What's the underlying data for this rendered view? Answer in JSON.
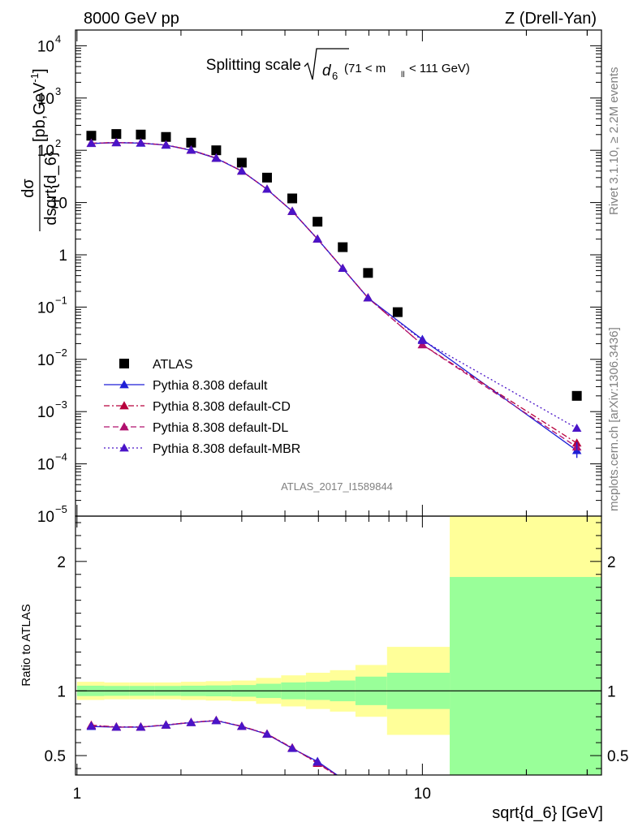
{
  "header": {
    "left": "8000 GeV pp",
    "right": "Z (Drell-Yan)"
  },
  "side_labels": {
    "rivet": "Rivet 3.1.10, ≥ 2.2M events",
    "mcplots": "mcplots.cern.ch [arXiv:1306.3436]"
  },
  "watermark": "ATLAS_2017_I1589844",
  "chart_data": [
    {
      "type": "scatter",
      "panel": "main",
      "title": "Splitting scale",
      "title_symbol": "d",
      "title_subscript": "6",
      "title_range_prefix": "(71 < m",
      "title_range_sub": "ll",
      "title_range_suffix": "< 111 GeV)",
      "ylabel_num": "dσ",
      "ylabel_den": "dsqrt{d_6}",
      "ylabel_units": "[pb,GeV",
      "ylabel_units_sup": "-1",
      "ylabel_units_end": "]",
      "xscale": "log",
      "yscale": "log",
      "xlim": [
        0.99,
        33
      ],
      "ylim": [
        1e-05,
        20000
      ],
      "xticks": [
        {
          "value": 1,
          "label": "1"
        },
        {
          "value": 10,
          "label": "10"
        }
      ],
      "yticks": [
        {
          "value": 1e-05,
          "base": "10",
          "exp": "−5"
        },
        {
          "value": 0.0001,
          "base": "10",
          "exp": "−4"
        },
        {
          "value": 0.001,
          "base": "10",
          "exp": "−3"
        },
        {
          "value": 0.01,
          "base": "10",
          "exp": "−2"
        },
        {
          "value": 0.1,
          "base": "10",
          "exp": "−1"
        },
        {
          "value": 1,
          "base": "1",
          "exp": ""
        },
        {
          "value": 10,
          "base": "10",
          "exp": ""
        },
        {
          "value": 100,
          "base": "10",
          "exp": "2"
        },
        {
          "value": 1000,
          "base": "10",
          "exp": "3"
        },
        {
          "value": 10000,
          "base": "10",
          "exp": "4"
        }
      ],
      "legend_position": "bottom-left",
      "series": [
        {
          "name": "ATLAS",
          "marker": "square",
          "color": "#000000",
          "x": [
            1.1,
            1.3,
            1.53,
            1.81,
            2.14,
            2.53,
            3.0,
            3.55,
            4.2,
            4.97,
            5.88,
            6.96,
            8.48,
            28.0
          ],
          "y": [
            190,
            205,
            200,
            180,
            140,
            100,
            58,
            30,
            12,
            4.3,
            1.4,
            0.45,
            0.08,
            0.002
          ]
        },
        {
          "name": "Pythia 8.308 default",
          "marker": "triangle",
          "line": "solid",
          "color": "#1f1fd6",
          "x": [
            1.1,
            1.3,
            1.53,
            1.81,
            2.14,
            2.53,
            3.0,
            3.55,
            4.2,
            4.97,
            5.88,
            6.96,
            10.0,
            28.0
          ],
          "y": [
            135,
            140,
            137,
            125,
            100,
            70,
            40,
            18,
            6.8,
            2.0,
            0.55,
            0.15,
            0.024,
            0.00018
          ]
        },
        {
          "name": "Pythia 8.308 default-CD",
          "marker": "triangle",
          "line": "dashdot",
          "color": "#b8003c",
          "x": [
            1.1,
            1.3,
            1.53,
            1.81,
            2.14,
            2.53,
            3.0,
            3.55,
            4.2,
            4.97,
            5.88,
            6.96,
            10.0,
            28.0
          ],
          "y": [
            137,
            141,
            138,
            126,
            101,
            71,
            40,
            18,
            6.8,
            2.0,
            0.55,
            0.15,
            0.019,
            0.00025
          ]
        },
        {
          "name": "Pythia 8.308 default-DL",
          "marker": "triangle",
          "line": "dashed",
          "color": "#b0106e",
          "x": [
            1.1,
            1.3,
            1.53,
            1.81,
            2.14,
            2.53,
            3.0,
            3.55,
            4.2,
            4.97,
            5.88,
            6.96,
            10.0,
            28.0
          ],
          "y": [
            136,
            140,
            138,
            126,
            101,
            71,
            40,
            18,
            6.8,
            2.0,
            0.55,
            0.15,
            0.019,
            0.00021
          ]
        },
        {
          "name": "Pythia 8.308 default-MBR",
          "marker": "triangle",
          "line": "dotted",
          "color": "#4a14c8",
          "x": [
            1.1,
            1.3,
            1.53,
            1.81,
            2.14,
            2.53,
            3.0,
            3.55,
            4.2,
            4.97,
            5.88,
            6.96,
            10.0,
            28.0
          ],
          "y": [
            136,
            140,
            138,
            126,
            101,
            71,
            40,
            18,
            6.8,
            2.0,
            0.55,
            0.15,
            0.023,
            0.00048
          ]
        }
      ]
    },
    {
      "type": "line",
      "panel": "ratio",
      "ylabel": "Ratio to ATLAS",
      "xlabel": "sqrt{d_6} [GeV]",
      "xscale": "log",
      "xlim": [
        0.99,
        33
      ],
      "ylim": [
        0.35,
        2.35
      ],
      "yticks": [
        {
          "value": 0.5,
          "label": "0.5"
        },
        {
          "value": 1,
          "label": "1"
        },
        {
          "value": 2,
          "label": "2"
        }
      ],
      "xticks": [
        {
          "value": 1,
          "label": "1"
        },
        {
          "value": 10,
          "label": "10"
        }
      ],
      "band_colors": {
        "outer": "#ffff99",
        "inner": "#99ff99"
      },
      "bands": [
        {
          "x0": 1.0,
          "x1": 1.2,
          "outer": [
            0.93,
            1.07
          ],
          "inner": [
            0.96,
            1.04
          ]
        },
        {
          "x0": 1.2,
          "x1": 1.42,
          "outer": [
            0.935,
            1.065
          ],
          "inner": [
            0.962,
            1.038
          ]
        },
        {
          "x0": 1.42,
          "x1": 1.68,
          "outer": [
            0.935,
            1.065
          ],
          "inner": [
            0.962,
            1.038
          ]
        },
        {
          "x0": 1.68,
          "x1": 2.0,
          "outer": [
            0.935,
            1.065
          ],
          "inner": [
            0.962,
            1.038
          ]
        },
        {
          "x0": 2.0,
          "x1": 2.36,
          "outer": [
            0.93,
            1.07
          ],
          "inner": [
            0.96,
            1.04
          ]
        },
        {
          "x0": 2.36,
          "x1": 2.8,
          "outer": [
            0.925,
            1.075
          ],
          "inner": [
            0.958,
            1.042
          ]
        },
        {
          "x0": 2.8,
          "x1": 3.3,
          "outer": [
            0.92,
            1.08
          ],
          "inner": [
            0.955,
            1.045
          ]
        },
        {
          "x0": 3.3,
          "x1": 3.9,
          "outer": [
            0.9,
            1.1
          ],
          "inner": [
            0.945,
            1.055
          ]
        },
        {
          "x0": 3.9,
          "x1": 4.6,
          "outer": [
            0.88,
            1.12
          ],
          "inner": [
            0.935,
            1.065
          ]
        },
        {
          "x0": 4.6,
          "x1": 5.4,
          "outer": [
            0.86,
            1.14
          ],
          "inner": [
            0.93,
            1.07
          ]
        },
        {
          "x0": 5.4,
          "x1": 6.4,
          "outer": [
            0.84,
            1.16
          ],
          "inner": [
            0.92,
            1.08
          ]
        },
        {
          "x0": 6.4,
          "x1": 7.9,
          "outer": [
            0.8,
            1.2
          ],
          "inner": [
            0.89,
            1.11
          ]
        },
        {
          "x0": 7.9,
          "x1": 12.0,
          "outer": [
            0.66,
            1.34
          ],
          "inner": [
            0.86,
            1.14
          ]
        },
        {
          "x0": 12.0,
          "x1": 33.0,
          "outer": [
            0.35,
            2.35
          ],
          "inner": [
            0.35,
            1.88
          ]
        }
      ],
      "series": [
        {
          "name": "Pythia 8.308 default",
          "color": "#1f1fd6",
          "line": "solid",
          "x": [
            1.1,
            1.3,
            1.53,
            1.81,
            2.14,
            2.53,
            3.0,
            3.55,
            4.2,
            4.97,
            5.88
          ],
          "y": [
            0.725,
            0.72,
            0.72,
            0.735,
            0.755,
            0.77,
            0.725,
            0.665,
            0.555,
            0.455,
            0.32
          ]
        },
        {
          "name": "Pythia 8.308 default-CD",
          "color": "#b8003c",
          "line": "dashdot",
          "x": [
            1.1,
            1.3,
            1.53,
            1.81,
            2.14,
            2.53,
            3.0,
            3.55,
            4.2,
            4.97,
            5.88
          ],
          "y": [
            0.735,
            0.722,
            0.722,
            0.737,
            0.757,
            0.772,
            0.727,
            0.667,
            0.56,
            0.44,
            0.315
          ]
        },
        {
          "name": "Pythia 8.308 default-DL",
          "color": "#b0106e",
          "line": "dashed",
          "x": [
            1.1,
            1.3,
            1.53,
            1.81,
            2.14,
            2.53,
            3.0,
            3.55,
            4.2,
            4.97,
            5.88
          ],
          "y": [
            0.73,
            0.72,
            0.72,
            0.736,
            0.756,
            0.771,
            0.726,
            0.666,
            0.558,
            0.445,
            0.318
          ]
        },
        {
          "name": "Pythia 8.308 default-MBR",
          "color": "#4a14c8",
          "line": "dotted",
          "x": [
            1.1,
            1.3,
            1.53,
            1.81,
            2.14,
            2.53,
            3.0,
            3.55,
            4.2,
            4.97,
            5.88
          ],
          "y": [
            0.728,
            0.72,
            0.72,
            0.736,
            0.756,
            0.771,
            0.726,
            0.666,
            0.556,
            0.45,
            0.318
          ]
        }
      ]
    }
  ]
}
